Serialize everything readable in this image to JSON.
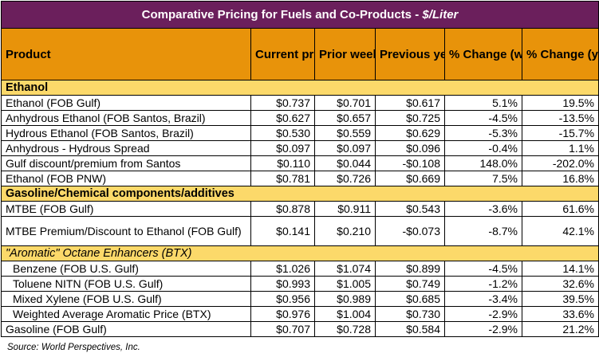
{
  "title": {
    "main": "Comparative Pricing for Fuels and Co-Products - ",
    "unit": "$/Liter"
  },
  "columns": [
    "Product",
    "Current price",
    "Prior week average",
    "Previous year",
    "% Change (week over week)",
    "% Change (year over year)"
  ],
  "sections": [
    {
      "label": "Ethanol",
      "rows": [
        [
          "Ethanol (FOB Gulf)",
          "$0.737",
          "$0.701",
          "$0.617",
          "5.1%",
          "19.5%"
        ],
        [
          "Anhydrous Ethanol (FOB Santos, Brazil)",
          "$0.627",
          "$0.657",
          "$0.725",
          "-4.5%",
          "-13.5%"
        ],
        [
          "Hydrous Ethanol (FOB Santos, Brazil)",
          "$0.530",
          "$0.559",
          "$0.629",
          "-5.3%",
          "-15.7%"
        ],
        [
          "Anhydrous - Hydrous Spread",
          "$0.097",
          "$0.097",
          "$0.096",
          "-0.4%",
          "1.1%"
        ],
        [
          "Gulf discount/premium from Santos",
          "$0.110",
          "$0.044",
          "-$0.108",
          "148.0%",
          "-202.0%"
        ],
        [
          "Ethanol (FOB PNW)",
          "$0.781",
          "$0.726",
          "$0.669",
          "7.5%",
          "16.8%"
        ]
      ]
    },
    {
      "label": "Gasoline/Chemical components/additives",
      "rows": [
        [
          "MTBE (FOB Gulf)",
          "$0.878",
          "$0.911",
          "$0.543",
          "-3.6%",
          "61.6%"
        ],
        [
          "MTBE Premium/Discount to Ethanol (FOB Gulf)",
          "$0.141",
          "$0.210",
          "-$0.073",
          "-8.7%",
          "42.1%"
        ]
      ]
    },
    {
      "label": "\"Aromatic\" Octane Enhancers (BTX)",
      "rows": [
        [
          "Benzene (FOB U.S. Gulf)",
          "$1.026",
          "$1.074",
          "$0.899",
          "-4.5%",
          "14.1%"
        ],
        [
          "Toluene NITN (FOB U.S. Gulf)",
          "$0.993",
          "$1.005",
          "$0.749",
          "-1.2%",
          "32.6%"
        ],
        [
          "Mixed Xylene (FOB U.S. Gulf)",
          "$0.956",
          "$0.989",
          "$0.685",
          "-3.4%",
          "39.5%"
        ],
        [
          "Weighted Average Aromatic Price (BTX)",
          "$0.976",
          "$1.004",
          "$0.730",
          "-2.9%",
          "33.6%"
        ],
        [
          "Gasoline (FOB Gulf)",
          "$0.707",
          "$0.728",
          "$0.584",
          "-2.9%",
          "21.2%"
        ]
      ]
    }
  ],
  "source": "Source: World Perspectives, Inc."
}
